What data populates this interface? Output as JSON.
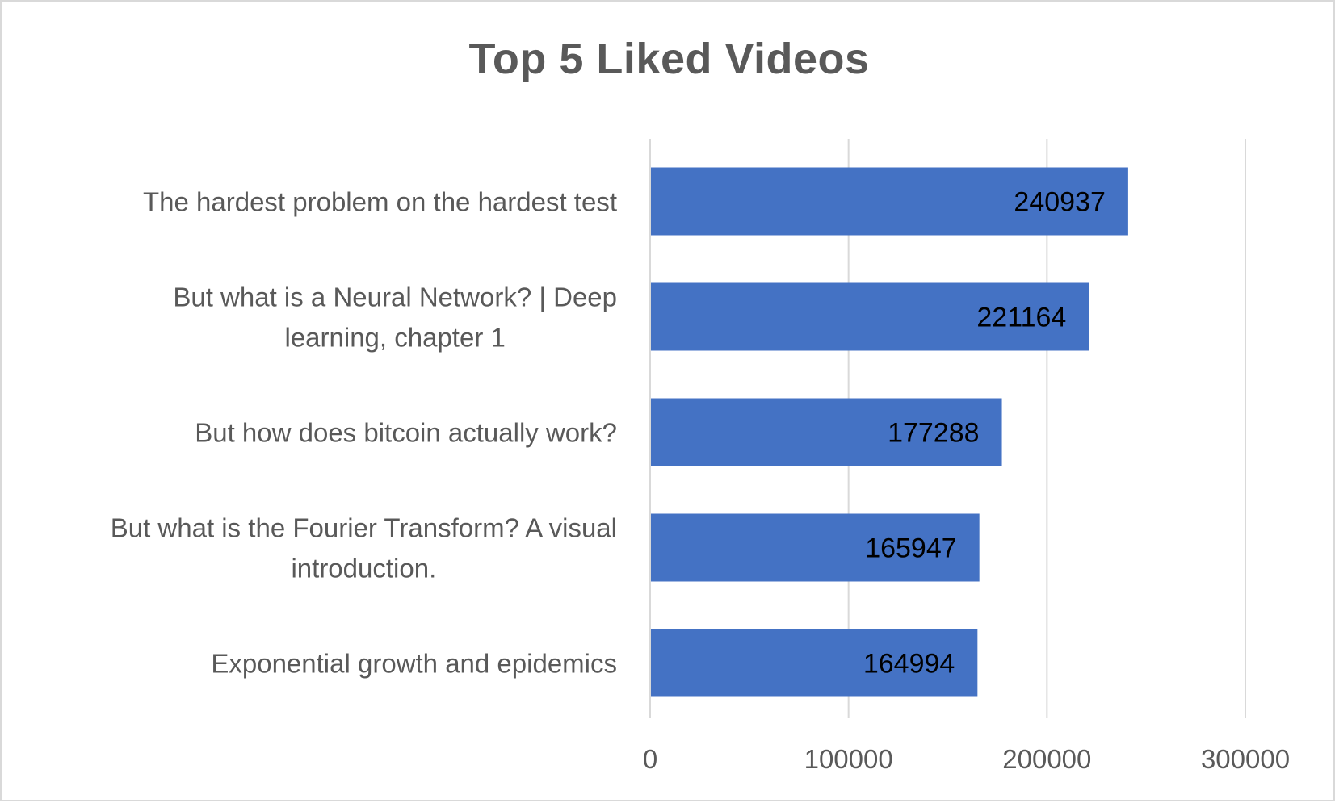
{
  "chart_data": {
    "type": "bar",
    "orientation": "horizontal",
    "title": "Top 5 Liked Videos",
    "xlabel": "",
    "ylabel": "",
    "categories": [
      "The hardest problem on the hardest test",
      "But what is a Neural Network? | Deep learning, chapter 1",
      "But how does bitcoin actually work?",
      "But what is the Fourier Transform?  A visual introduction.",
      "Exponential growth and epidemics"
    ],
    "category_lines": [
      [
        "The hardest problem on the hardest test"
      ],
      [
        "But what is a Neural Network? | Deep",
        "learning, chapter 1"
      ],
      [
        "But how does bitcoin actually work?"
      ],
      [
        "But what is the Fourier Transform?  A visual",
        "introduction."
      ],
      [
        "Exponential growth and epidemics"
      ]
    ],
    "values": [
      240937,
      221164,
      177288,
      165947,
      164994
    ],
    "data_labels": [
      "240937",
      "221164",
      "177288",
      "165947",
      "164994"
    ],
    "xlim": [
      0,
      300000
    ],
    "ticks": [
      0,
      100000,
      200000,
      300000
    ],
    "tick_labels": [
      "0",
      "100000",
      "200000",
      "300000"
    ],
    "grid": true,
    "legend": "none",
    "colors": {
      "bar": "#4472c4",
      "grid": "#d9d9d9",
      "text": "#595959",
      "data_label": "#000000",
      "border": "#d9d9d9"
    }
  }
}
